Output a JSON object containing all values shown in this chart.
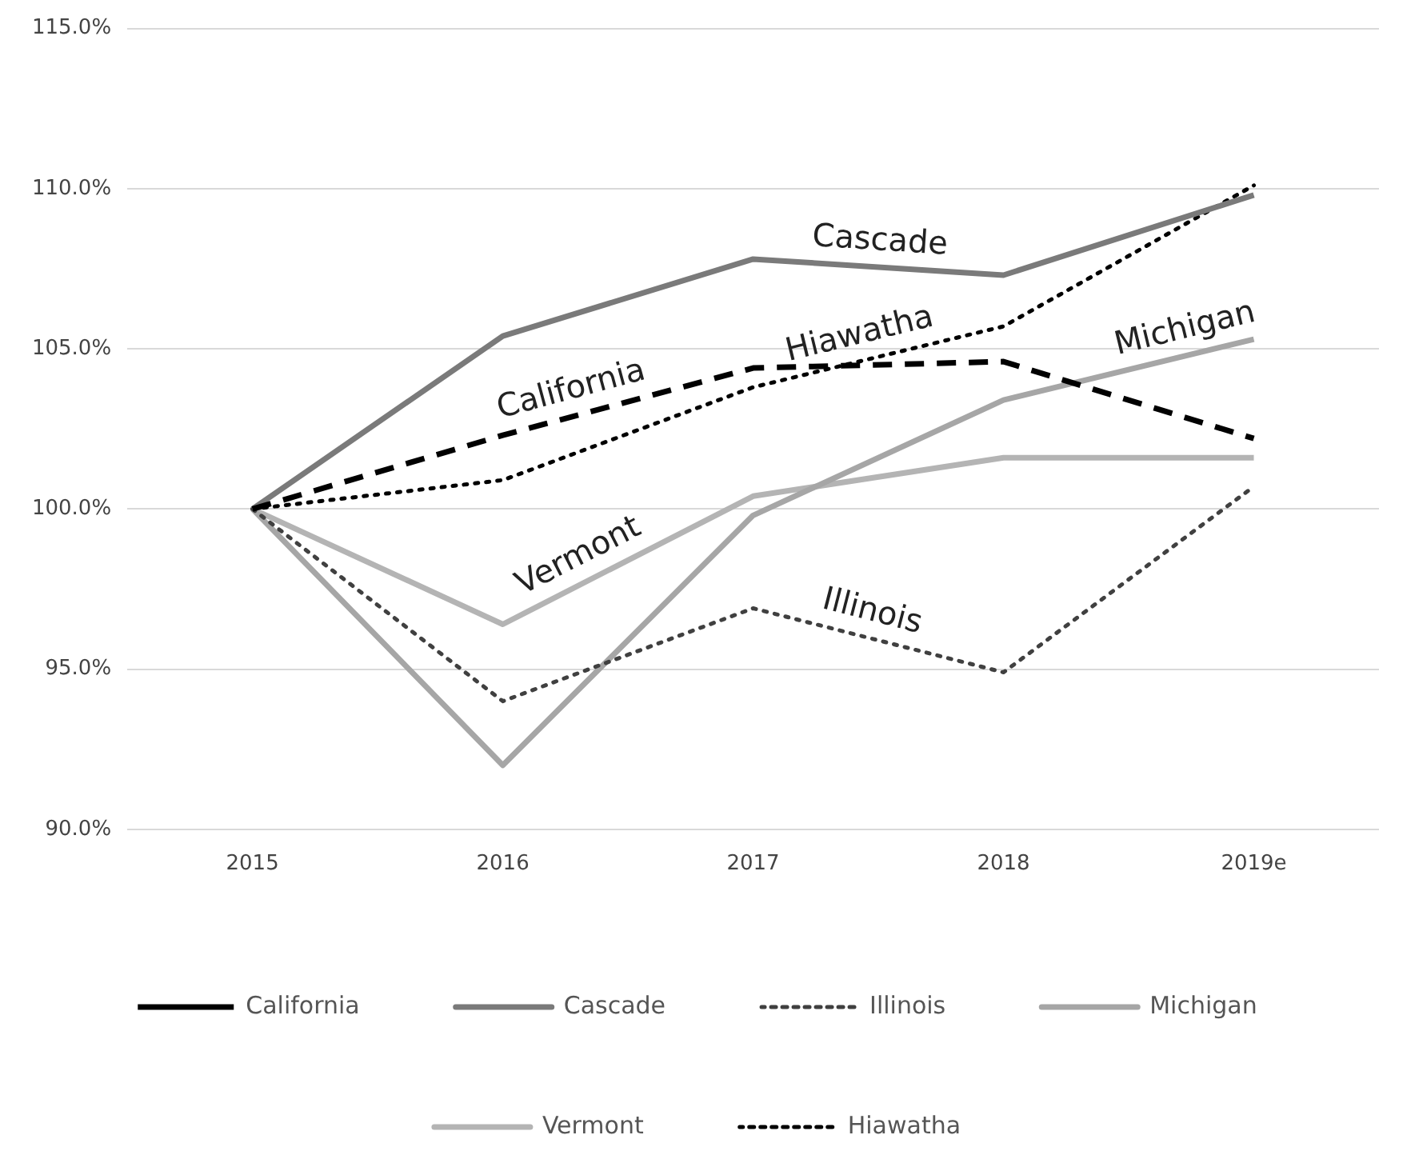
{
  "chart_data": {
    "type": "line",
    "categories": [
      "2015",
      "2016",
      "2017",
      "2018",
      "2019e"
    ],
    "series": [
      {
        "name": "California",
        "color": "#000000",
        "line_style": "dashed",
        "values": [
          100,
          102.3,
          104.4,
          104.6,
          102.2
        ]
      },
      {
        "name": "Cascade",
        "color": "#7a7a7a",
        "line_style": "solid",
        "values": [
          100,
          105.4,
          107.8,
          107.3,
          109.8
        ]
      },
      {
        "name": "Illinois",
        "color": "#404040",
        "line_style": "dotted",
        "values": [
          100,
          94.0,
          96.9,
          94.9,
          100.7
        ]
      },
      {
        "name": "Michigan",
        "color": "#a6a6a6",
        "line_style": "solid",
        "values": [
          100,
          92.0,
          99.8,
          103.4,
          105.3
        ]
      },
      {
        "name": "Vermont",
        "color": "#b4b4b4",
        "line_style": "solid",
        "values": [
          100,
          96.4,
          100.4,
          101.6,
          101.6
        ]
      },
      {
        "name": "Hiawatha",
        "color": "#000000",
        "line_style": "dotted",
        "values": [
          100,
          100.9,
          103.8,
          105.7,
          110.1
        ]
      }
    ],
    "ylim": [
      90,
      115
    ],
    "yticks": [
      {
        "value": 90,
        "label": "90.0%"
      },
      {
        "value": 95,
        "label": "95.0%"
      },
      {
        "value": 100,
        "label": "100.0%"
      },
      {
        "value": 105,
        "label": "105.0%"
      },
      {
        "value": 110,
        "label": "110.0%"
      },
      {
        "value": 115,
        "label": "115.0%"
      }
    ],
    "grid": "y",
    "legend": "bottom",
    "marker": "none"
  }
}
